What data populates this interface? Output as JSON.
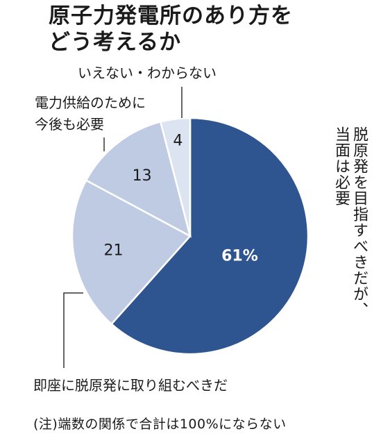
{
  "title_lines": [
    "原子力発電所のあり方を",
    "どう考えるか"
  ],
  "chart_data": {
    "type": "pie",
    "unit": "%",
    "slices": [
      {
        "label": "脱原発を目指すべきだが、当面は必要",
        "value": 61,
        "display": "61%",
        "color": "#2e5590"
      },
      {
        "label": "即座に脱原発に取り組むべきだ",
        "value": 21,
        "display": "21",
        "color": "#bfcbe3"
      },
      {
        "label": "電力供給のために今後も必要",
        "value": 13,
        "display": "13",
        "color": "#bfcbe3"
      },
      {
        "label": "いえない・わからない",
        "value": 4,
        "display": "4",
        "color": "#dde4f1"
      }
    ],
    "callouts": {
      "dont_know": "いえない・わからない",
      "needed_line1": "電力供給のために",
      "needed_line2": "今後も必要",
      "immediate": "即座に脱原発に取り組むべきだ",
      "reduce_line1": "脱原発を目指すべきだが、",
      "reduce_line2": "当面は必要"
    },
    "note": "(注)端数の関係で合計は100%にならない"
  }
}
